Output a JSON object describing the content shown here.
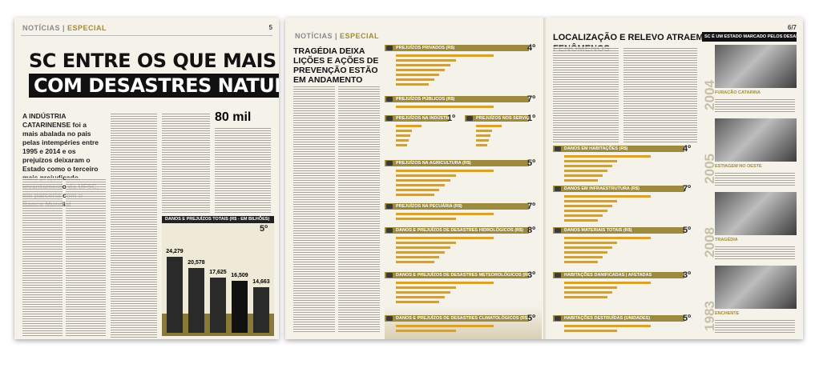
{
  "left_page": {
    "section": "NOTÍCIAS",
    "subsection": "ESPECIAL",
    "page": "5",
    "headline_1": "SC ENTRE OS QUE MAIS SOFREM",
    "headline_2": "COM DESASTRES NATURAIS",
    "lead": "A INDÚSTRIA CATARINENSE foi a mais abalada no país pelas intempéries entre 1995 e 2014 e os prejuízos deixaram o Estado como o terceiro mais prejudicado, levantamento da UFSC, em parceria com o Banco Mundial",
    "callout": "80 mil",
    "chart": {
      "title": "DANOS E PREJUÍZOS TOTAIS (R$ - EM BILHÕES)",
      "rank": "5º",
      "values": [
        24.279,
        20.578,
        17.625,
        16.509,
        14.663
      ],
      "value_labels": [
        "24,279",
        "20,578",
        "17,625",
        "16,509",
        "14,663"
      ]
    }
  },
  "right_page": {
    "section": "NOTÍCIAS",
    "subsection": "ESPECIAL",
    "page": "6/7",
    "headline": "TRAGÉDIA DEIXA LIÇÕES E AÇÕES DE PREVENÇÃO ESTÃO EM ANDAMENTO",
    "headline_2": "LOCALIZAÇÃO E RELEVO ATRAEM FENÔMENOS",
    "infographics": [
      {
        "title": "PREJUÍZOS PRIVADOS (R$)",
        "rank": "4º"
      },
      {
        "title": "PREJUÍZOS PÚBLICOS (R$)",
        "rank": "7º"
      },
      {
        "title": "PREJUÍZOS NA INDÚSTRIA (R$)",
        "rank": "1º"
      },
      {
        "title": "PREJUÍZOS NOS SERVIÇOS (R$)",
        "rank": "1º"
      },
      {
        "title": "PREJUÍZOS NA AGRICULTURA (R$)",
        "rank": "5º"
      },
      {
        "title": "PREJUÍZOS NA PECUÁRIA (R$)",
        "rank": "7º"
      },
      {
        "title": "DANOS E PREJUÍZOS DE DESASTRES HIDROLÓGICOS (R$)",
        "rank": "8º"
      },
      {
        "title": "DANOS E PREJUÍZOS DE DESASTRES METEOROLÓGICOS (R$)",
        "rank": "3º"
      },
      {
        "title": "DANOS E PREJUÍZOS DE DESASTRES CLIMATOLÓGICOS (R$)",
        "rank": "5º"
      },
      {
        "title": "DANOS EM HABITAÇÕES (R$)",
        "rank": "4º"
      },
      {
        "title": "DANOS EM INFRAESTRUTURA (R$)",
        "rank": "7º"
      },
      {
        "title": "DANOS MATERIAIS TOTAIS (R$)",
        "rank": "5º"
      },
      {
        "title": "HABITAÇÕES DANIFICADAS | AFETADAS",
        "rank": "3º"
      },
      {
        "title": "HABITAÇÕES DESTRUÍDAS (UNIDADES)",
        "rank": "5º"
      }
    ],
    "timeline": {
      "title": "SC É UM ESTADO MARCADO PELOS DESASTRES",
      "events": [
        {
          "year": "2004",
          "caption": "FURACÃO CATARINA"
        },
        {
          "year": "2005",
          "caption": "ESTIAGEM NO OESTE"
        },
        {
          "year": "2008",
          "caption": "TRAGÉDIA"
        },
        {
          "year": "1983",
          "caption": "ENCHENTE"
        }
      ]
    }
  }
}
